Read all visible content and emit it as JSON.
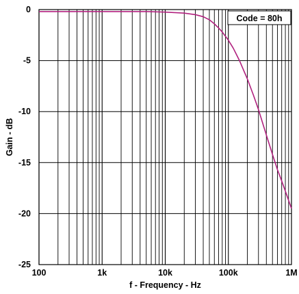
{
  "chart_data": {
    "type": "line",
    "title": "",
    "xlabel": "f - Frequency - Hz",
    "ylabel": "Gain - dB",
    "x_scale": "log",
    "xlim": [
      100,
      1000000
    ],
    "ylim": [
      -25,
      0
    ],
    "grid": true,
    "x_ticks": [
      100,
      1000,
      10000,
      100000,
      1000000
    ],
    "x_tick_labels": [
      "100",
      "1k",
      "10k",
      "100k",
      "1M"
    ],
    "y_ticks": [
      0,
      -5,
      -10,
      -15,
      -20,
      -25
    ],
    "y_tick_labels": [
      "0",
      "-5",
      "-10",
      "-15",
      "-20",
      "-25"
    ],
    "annotations": [
      {
        "text": "Code = 80h",
        "position": "top-right"
      }
    ],
    "series": [
      {
        "color": "#b0207e",
        "x": [
          100,
          200,
          500,
          1000,
          2000,
          5000,
          10000,
          20000,
          30000,
          40000,
          50000,
          60000,
          70000,
          80000,
          100000,
          120000,
          150000,
          200000,
          250000,
          300000,
          400000,
          500000,
          600000,
          700000,
          800000,
          900000,
          1000000
        ],
        "y": [
          -0.2,
          -0.2,
          -0.2,
          -0.2,
          -0.2,
          -0.2,
          -0.25,
          -0.35,
          -0.5,
          -0.7,
          -1.0,
          -1.4,
          -1.8,
          -2.2,
          -3.0,
          -3.8,
          -5.0,
          -6.8,
          -8.4,
          -9.8,
          -12.3,
          -14.2,
          -15.7,
          -16.8,
          -17.8,
          -18.7,
          -19.5
        ]
      }
    ]
  }
}
